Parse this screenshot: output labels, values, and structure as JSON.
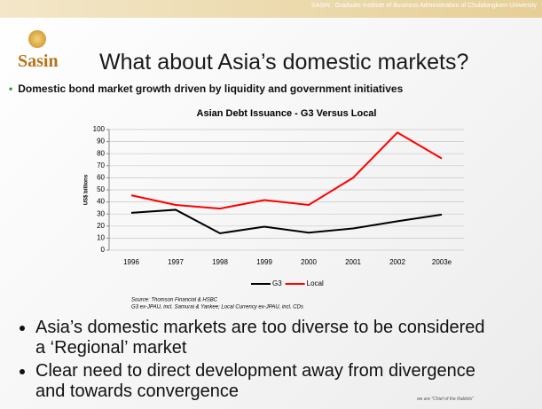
{
  "banner": "SASIN : Graduate Institute of Business Administration of Chulalongkorn University",
  "logo": "Sasin",
  "title": "What about Asia’s domestic markets?",
  "subtitle_bullet": "Domestic bond market growth driven by liquidity and government initiatives",
  "chart_data": {
    "type": "line",
    "title": "Asian Debt Issuance - G3 Versus Local",
    "ylabel": "US$ billions",
    "categories": [
      "1996",
      "1997",
      "1998",
      "1999",
      "2000",
      "2001",
      "2002",
      "2003e"
    ],
    "series": [
      {
        "name": "G3",
        "color": "#000000",
        "values": [
          31,
          33.5,
          14,
          19.5,
          14.5,
          18,
          24,
          29.5
        ]
      },
      {
        "name": "Local",
        "color": "#ff0000",
        "values": [
          45.5,
          37.5,
          34.5,
          41.5,
          37.5,
          60,
          97.5,
          76
        ]
      }
    ],
    "ylim": [
      0,
      100
    ],
    "yticks": [
      0,
      10,
      20,
      30,
      40,
      50,
      60,
      70,
      80,
      90,
      100
    ],
    "grid": true,
    "source": [
      "Source: Thomson Financial & HSBC",
      "G3 ex-JPAU, incl. Samurai & Yankee; Local Currency ex-JPAU, incl. CDs"
    ]
  },
  "bullets": [
    "Asia’s domestic markets are too diverse to be considered a ‘Regional’ market",
    "Clear need to direct development away from divergence and towards convergence"
  ],
  "footer_tag": "we are \"Chief of the Rabbits\""
}
